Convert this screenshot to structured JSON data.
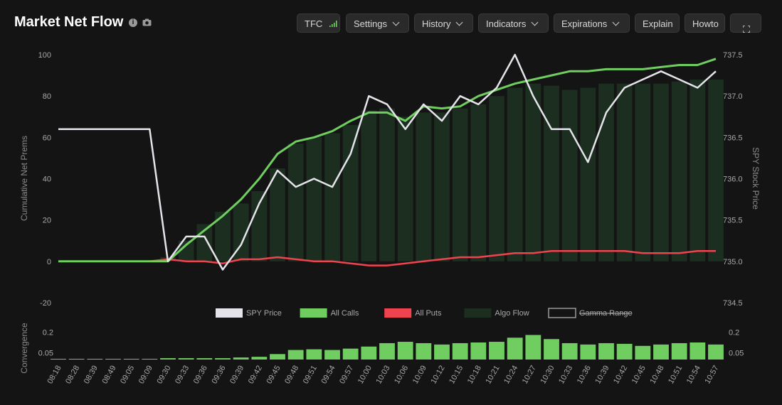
{
  "header": {
    "title": "Market Net Flow",
    "buttons": [
      {
        "label": "TFC",
        "icon": "signal-bars-icon"
      },
      {
        "label": "Settings",
        "icon": "chevron-down-icon"
      },
      {
        "label": "History",
        "icon": "chevron-down-icon"
      },
      {
        "label": "Indicators",
        "icon": "chevron-down-icon"
      },
      {
        "label": "Expirations",
        "icon": "chevron-down-icon"
      },
      {
        "label": "Explain"
      },
      {
        "label": "Howto"
      },
      {
        "label": "",
        "icon": "fullscreen-icon"
      }
    ]
  },
  "colors": {
    "background": "#141414",
    "spy": "#e4e4ea",
    "calls": "#6fce5f",
    "puts": "#f0434f",
    "algo": "#1b2e20",
    "conv": "#6fce5f"
  },
  "chart_data": [
    {
      "type": "line",
      "title": "Market Net Flow",
      "ylabel": "Cumulative Net Prems",
      "y2label": "SPY Stock Price",
      "ylim": [
        -20,
        100
      ],
      "y2lim": [
        734.5,
        737.5
      ],
      "yticks": [
        "100",
        "80",
        "60",
        "40",
        "20",
        "0",
        "-20"
      ],
      "y2ticks": [
        "737.5",
        "737.0",
        "736.5",
        "736.0",
        "735.5",
        "735.0",
        "734.5"
      ],
      "x": [
        "08:18",
        "08:28",
        "08:39",
        "08:49",
        "09:05",
        "09:09",
        "09:30",
        "09:33",
        "09:36",
        "09:36",
        "09:39",
        "09:42",
        "09:45",
        "09:48",
        "09:51",
        "09:54",
        "09:57",
        "10:00",
        "10:03",
        "10:06",
        "10:09",
        "10:12",
        "10:15",
        "10:18",
        "10:21",
        "10:24",
        "10:27",
        "10:30",
        "10:33",
        "10:36",
        "10:39",
        "10:42",
        "10:45",
        "10:48",
        "10:51",
        "10:54",
        "10:57"
      ],
      "legend": [
        "SPY Price",
        "All Calls",
        "All Puts",
        "Algo Flow",
        "Gamma Range"
      ],
      "series": [
        {
          "name": "All Calls",
          "axis": "left",
          "values": [
            0,
            0,
            0,
            0,
            0,
            0,
            0,
            8,
            15,
            22,
            30,
            40,
            52,
            58,
            60,
            63,
            68,
            72,
            72,
            68,
            75,
            74,
            75,
            80,
            83,
            86,
            88,
            90,
            92,
            92,
            93,
            93,
            93,
            94,
            95,
            95,
            98
          ]
        },
        {
          "name": "All Puts",
          "axis": "left",
          "values": [
            0,
            0,
            0,
            0,
            0,
            0,
            1,
            0,
            0,
            -1,
            1,
            1,
            2,
            1,
            0,
            0,
            -1,
            -2,
            -2,
            -1,
            0,
            1,
            2,
            2,
            3,
            4,
            4,
            5,
            5,
            5,
            5,
            5,
            4,
            4,
            4,
            5,
            5
          ]
        },
        {
          "name": "SPY Price",
          "axis": "right",
          "values": [
            736.6,
            736.6,
            736.6,
            736.6,
            736.6,
            736.6,
            735.0,
            735.3,
            735.3,
            734.9,
            735.2,
            735.7,
            736.1,
            735.9,
            736.0,
            735.9,
            736.3,
            737.0,
            736.9,
            736.6,
            736.9,
            736.7,
            737.0,
            736.9,
            737.1,
            737.5,
            737.0,
            736.6,
            736.6,
            736.2,
            736.8,
            737.1,
            737.2,
            737.3,
            737.2,
            737.1,
            737.3
          ]
        },
        {
          "name": "Algo Flow",
          "axis": "left",
          "values": [
            0,
            0,
            0,
            0,
            0,
            0,
            2,
            10,
            18,
            24,
            28,
            34,
            45,
            57,
            60,
            62,
            66,
            73,
            74,
            70,
            72,
            72,
            74,
            76,
            80,
            84,
            86,
            85,
            83,
            84,
            86,
            86,
            86,
            86,
            87,
            88,
            88
          ]
        }
      ]
    },
    {
      "type": "bar",
      "ylabel": "Convergence",
      "yticks": [
        "0.2",
        "0.05"
      ],
      "ylim": [
        0,
        0.25
      ],
      "x": [
        "08:18",
        "08:28",
        "08:39",
        "08:49",
        "09:05",
        "09:09",
        "09:30",
        "09:33",
        "09:36",
        "09:36",
        "09:39",
        "09:42",
        "09:45",
        "09:48",
        "09:51",
        "09:54",
        "09:57",
        "10:00",
        "10:03",
        "10:06",
        "10:09",
        "10:12",
        "10:15",
        "10:18",
        "10:21",
        "10:24",
        "10:27",
        "10:30",
        "10:33",
        "10:36",
        "10:39",
        "10:42",
        "10:45",
        "10:48",
        "10:51",
        "10:54",
        "10:57"
      ],
      "values": [
        0.005,
        0.005,
        0.005,
        0.005,
        0.005,
        0.005,
        0.01,
        0.01,
        0.01,
        0.01,
        0.015,
        0.02,
        0.04,
        0.07,
        0.075,
        0.07,
        0.08,
        0.095,
        0.12,
        0.13,
        0.12,
        0.11,
        0.12,
        0.125,
        0.13,
        0.16,
        0.18,
        0.15,
        0.12,
        0.11,
        0.12,
        0.115,
        0.1,
        0.11,
        0.12,
        0.125,
        0.11
      ]
    }
  ]
}
